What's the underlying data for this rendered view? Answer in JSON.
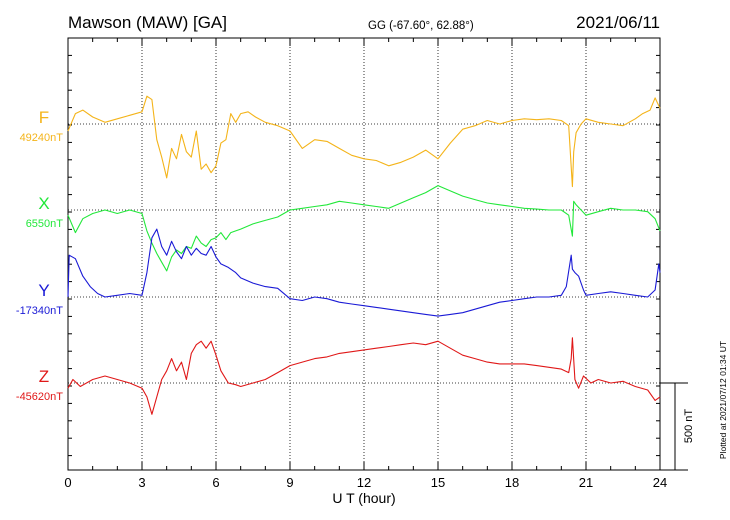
{
  "header": {
    "station": "Mawson (MAW)  [GA]",
    "coords": "GG (-67.60°,  62.88°)",
    "date": "2021/06/11"
  },
  "plotted_note": "Plotted at 2021/07/12 01:34 UT",
  "chart_data": {
    "type": "line",
    "xlabel": "U T (hour)",
    "xlim": [
      0,
      24
    ],
    "xticks": [
      "0",
      "3",
      "6",
      "9",
      "12",
      "15",
      "18",
      "21",
      "24"
    ],
    "grid": true,
    "scale_bar": {
      "label": "500 nT",
      "value_nT": 500
    },
    "series": [
      {
        "name": "F",
        "baseline_label": "49240nT",
        "baseline_nT": 49240,
        "color": "#f4b41a",
        "x": [
          0,
          0.3,
          0.6,
          1.0,
          1.5,
          2.0,
          2.5,
          3.0,
          3.2,
          3.4,
          3.6,
          3.8,
          4.0,
          4.2,
          4.4,
          4.6,
          4.8,
          5.0,
          5.2,
          5.4,
          5.6,
          5.8,
          6.0,
          6.2,
          6.4,
          6.6,
          6.8,
          7.0,
          7.3,
          7.6,
          8.0,
          8.5,
          9.0,
          9.5,
          10.0,
          10.5,
          11.0,
          11.5,
          12.0,
          12.5,
          13.0,
          13.5,
          14.0,
          14.5,
          15.0,
          15.5,
          16.0,
          16.5,
          17.0,
          17.5,
          18.0,
          18.5,
          19.0,
          19.5,
          20.0,
          20.3,
          20.45,
          20.5,
          20.6,
          20.8,
          21.0,
          21.5,
          22.0,
          22.5,
          23.0,
          23.3,
          23.6,
          23.8,
          24.0
        ],
        "y": [
          49200,
          49300,
          49320,
          49280,
          49250,
          49270,
          49290,
          49310,
          49400,
          49380,
          49150,
          49050,
          48930,
          49100,
          49040,
          49180,
          49080,
          49050,
          49200,
          48980,
          49010,
          48960,
          49000,
          49130,
          49150,
          49300,
          49250,
          49300,
          49310,
          49280,
          49250,
          49230,
          49200,
          49100,
          49150,
          49140,
          49100,
          49060,
          49040,
          49030,
          49000,
          49020,
          49050,
          49090,
          49040,
          49130,
          49210,
          49230,
          49260,
          49240,
          49260,
          49270,
          49265,
          49270,
          49260,
          49230,
          48880,
          49080,
          49190,
          49240,
          49270,
          49250,
          49240,
          49230,
          49270,
          49300,
          49320,
          49390,
          49330
        ]
      },
      {
        "name": "X",
        "baseline_label": "6550nT",
        "baseline_nT": 6550,
        "color": "#22e83a",
        "x": [
          0,
          0.3,
          0.6,
          1.0,
          1.5,
          2.0,
          2.5,
          3.0,
          3.2,
          3.4,
          3.6,
          3.8,
          4.0,
          4.2,
          4.4,
          4.6,
          4.8,
          5.0,
          5.2,
          5.4,
          5.6,
          5.8,
          6.0,
          6.2,
          6.4,
          6.6,
          6.8,
          7.0,
          7.5,
          8.0,
          8.5,
          9.0,
          9.5,
          10.0,
          10.5,
          11.0,
          11.5,
          12.0,
          12.5,
          13.0,
          13.5,
          14.0,
          14.5,
          15.0,
          15.5,
          16.0,
          16.5,
          17.0,
          17.5,
          18.0,
          18.5,
          19.0,
          19.5,
          20.0,
          20.3,
          20.45,
          20.5,
          20.6,
          20.8,
          21.0,
          21.5,
          22.0,
          22.5,
          23.0,
          23.5,
          23.8,
          24.0
        ],
        "y": [
          6520,
          6420,
          6500,
          6530,
          6550,
          6530,
          6550,
          6530,
          6430,
          6360,
          6300,
          6250,
          6200,
          6280,
          6320,
          6300,
          6340,
          6330,
          6400,
          6360,
          6340,
          6380,
          6390,
          6420,
          6380,
          6420,
          6430,
          6440,
          6470,
          6490,
          6510,
          6550,
          6560,
          6570,
          6580,
          6600,
          6590,
          6580,
          6570,
          6560,
          6590,
          6620,
          6650,
          6690,
          6660,
          6630,
          6610,
          6590,
          6580,
          6570,
          6560,
          6555,
          6550,
          6550,
          6520,
          6400,
          6600,
          6580,
          6550,
          6520,
          6540,
          6560,
          6550,
          6550,
          6540,
          6500,
          6430
        ]
      },
      {
        "name": "Y",
        "baseline_label": "-17340nT",
        "baseline_nT": -17340,
        "color": "#1a1ad6",
        "x": [
          0,
          0.05,
          0.3,
          0.6,
          0.9,
          1.2,
          1.5,
          2.0,
          2.5,
          3.0,
          3.2,
          3.4,
          3.6,
          3.8,
          4.0,
          4.2,
          4.4,
          4.6,
          4.8,
          5.0,
          5.2,
          5.4,
          5.6,
          5.8,
          6.0,
          6.2,
          6.5,
          6.8,
          7.0,
          7.5,
          8.0,
          8.5,
          9.0,
          9.5,
          10.0,
          10.5,
          11.0,
          11.5,
          12.0,
          12.5,
          13.0,
          13.5,
          14.0,
          14.5,
          15.0,
          15.5,
          16.0,
          16.5,
          17.0,
          17.5,
          18.0,
          18.5,
          19.0,
          19.5,
          20.0,
          20.2,
          20.4,
          20.45,
          20.55,
          20.7,
          20.9,
          21.0,
          21.5,
          22.0,
          22.5,
          23.0,
          23.5,
          23.8,
          23.95,
          24.0
        ],
        "y": [
          -17340,
          -17100,
          -17120,
          -17220,
          -17280,
          -17320,
          -17340,
          -17330,
          -17320,
          -17330,
          -17200,
          -17000,
          -16950,
          -17050,
          -17100,
          -17020,
          -17080,
          -17120,
          -17050,
          -17100,
          -17060,
          -17090,
          -17100,
          -17050,
          -17110,
          -17150,
          -17170,
          -17200,
          -17230,
          -17260,
          -17280,
          -17290,
          -17350,
          -17360,
          -17340,
          -17350,
          -17370,
          -17380,
          -17390,
          -17400,
          -17410,
          -17420,
          -17430,
          -17440,
          -17450,
          -17440,
          -17430,
          -17410,
          -17390,
          -17370,
          -17360,
          -17350,
          -17340,
          -17340,
          -17330,
          -17280,
          -17100,
          -17180,
          -17200,
          -17220,
          -17300,
          -17330,
          -17320,
          -17310,
          -17320,
          -17330,
          -17340,
          -17300,
          -17150,
          -17200
        ]
      },
      {
        "name": "Z",
        "baseline_label": "-45620nT",
        "baseline_nT": -45620,
        "color": "#e01818",
        "x": [
          0,
          0.2,
          0.5,
          1.0,
          1.5,
          2.0,
          2.5,
          3.0,
          3.2,
          3.4,
          3.6,
          3.8,
          4.0,
          4.2,
          4.4,
          4.6,
          4.8,
          5.0,
          5.2,
          5.4,
          5.6,
          5.8,
          6.0,
          6.2,
          6.5,
          6.8,
          7.0,
          7.5,
          8.0,
          8.5,
          9.0,
          9.5,
          10.0,
          10.5,
          11.0,
          11.5,
          12.0,
          12.5,
          13.0,
          13.5,
          14.0,
          14.5,
          15.0,
          15.5,
          16.0,
          16.5,
          17.0,
          17.5,
          18.0,
          18.5,
          19.0,
          19.5,
          20.0,
          20.3,
          20.4,
          20.45,
          20.55,
          20.7,
          20.9,
          21.2,
          21.5,
          22.0,
          22.5,
          23.0,
          23.5,
          23.8,
          24.0
        ],
        "y": [
          -45650,
          -45600,
          -45640,
          -45600,
          -45580,
          -45600,
          -45620,
          -45650,
          -45700,
          -45800,
          -45700,
          -45600,
          -45550,
          -45480,
          -45550,
          -45500,
          -45600,
          -45450,
          -45400,
          -45380,
          -45420,
          -45380,
          -45460,
          -45550,
          -45620,
          -45630,
          -45640,
          -45620,
          -45600,
          -45560,
          -45520,
          -45500,
          -45480,
          -45470,
          -45450,
          -45440,
          -45430,
          -45420,
          -45410,
          -45400,
          -45390,
          -45400,
          -45380,
          -45420,
          -45460,
          -45480,
          -45500,
          -45510,
          -45510,
          -45510,
          -45520,
          -45530,
          -45540,
          -45560,
          -45480,
          -45360,
          -45600,
          -45650,
          -45580,
          -45620,
          -45600,
          -45620,
          -45610,
          -45640,
          -45660,
          -45720,
          -45700
        ]
      }
    ]
  }
}
